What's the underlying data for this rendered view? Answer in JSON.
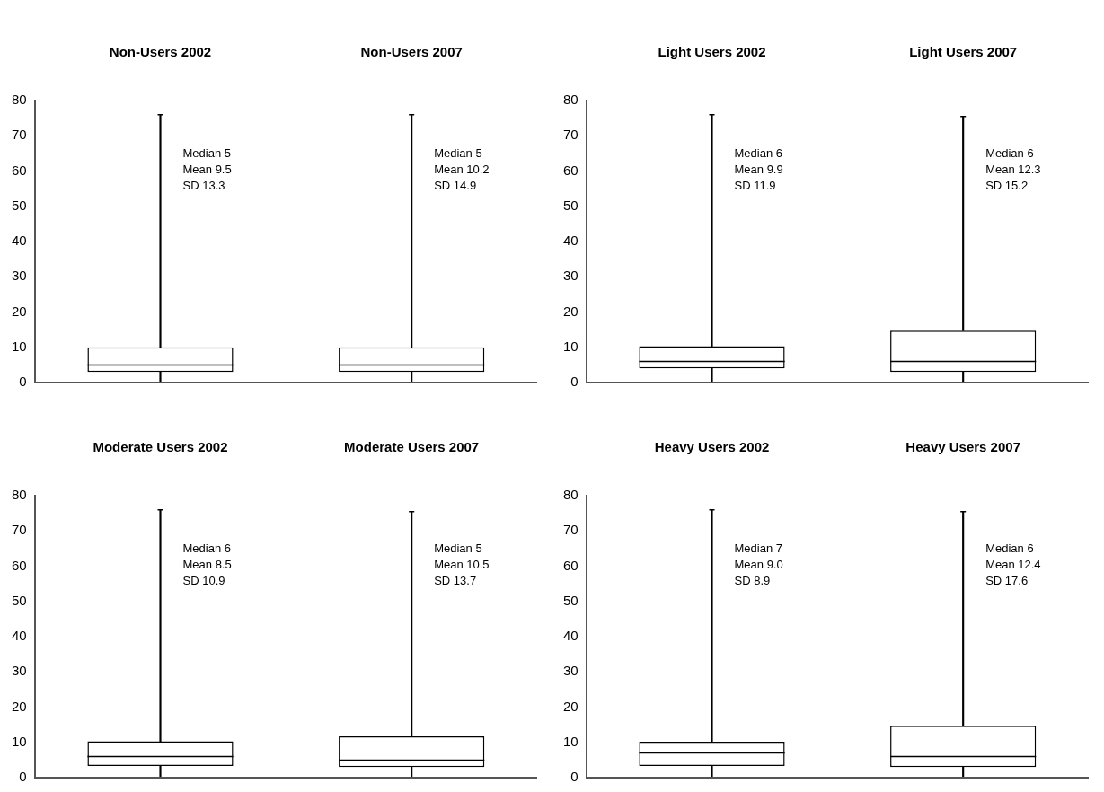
{
  "chart_data": [
    {
      "type": "box",
      "categories": [
        "Non-Users 2002",
        "Non-Users 2007"
      ],
      "series": [
        {
          "color": "#000000",
          "boxes": [
            {
              "low": 0,
              "q1": 3,
              "median": 5,
              "q3": 10,
              "high": 76
            },
            {
              "low": 0,
              "q1": 3,
              "median": 5,
              "q3": 10,
              "high": 76
            }
          ]
        }
      ],
      "ylim": [
        0,
        80
      ],
      "yticks": [
        0,
        10,
        20,
        30,
        40,
        50,
        60,
        70,
        80
      ],
      "grid": false,
      "legend": false,
      "annotations": [
        "Median 5\nMean 9.5\nSD 13.3",
        "Median 5\nMean 10.2\nSD 14.9"
      ]
    },
    {
      "type": "box",
      "categories": [
        "Light Users 2002",
        "Light Users 2007"
      ],
      "series": [
        {
          "color": "#000000",
          "boxes": [
            {
              "low": 0,
              "q1": 4,
              "median": 6,
              "q3": 10.3,
              "high": 76
            },
            {
              "low": 0,
              "q1": 3,
              "median": 6,
              "q3": 14.7,
              "high": 75.5
            }
          ]
        }
      ],
      "ylim": [
        0,
        80
      ],
      "yticks": [
        0,
        10,
        20,
        30,
        40,
        50,
        60,
        70,
        80
      ],
      "grid": false,
      "legend": false,
      "annotations": [
        "Median 6\nMean 9.9\nSD 11.9",
        "Median 6\nMean 12.3\nSD 15.2"
      ]
    },
    {
      "type": "box",
      "categories": [
        "Moderate Users 2002",
        "Moderate Users 2007"
      ],
      "series": [
        {
          "color": "#000000",
          "boxes": [
            {
              "low": 0,
              "q1": 3.3,
              "median": 6,
              "q3": 10.3,
              "high": 76
            },
            {
              "low": 0,
              "q1": 3,
              "median": 5,
              "q3": 11.7,
              "high": 75.5
            }
          ]
        }
      ],
      "ylim": [
        0,
        80
      ],
      "yticks": [
        0,
        10,
        20,
        30,
        40,
        50,
        60,
        70,
        80
      ],
      "grid": false,
      "legend": false,
      "annotations": [
        "Median 6\nMean 8.5\nSD 10.9",
        "Median 5\nMean 10.5\nSD 13.7"
      ]
    },
    {
      "type": "box",
      "categories": [
        "Heavy Users 2002",
        "Heavy Users 2007"
      ],
      "series": [
        {
          "color": "#000000",
          "boxes": [
            {
              "low": 0,
              "q1": 3.3,
              "median": 7,
              "q3": 10.2,
              "high": 76
            },
            {
              "low": 0,
              "q1": 3,
              "median": 6,
              "q3": 14.7,
              "high": 75.5
            }
          ]
        }
      ],
      "ylim": [
        0,
        80
      ],
      "yticks": [
        0,
        10,
        20,
        30,
        40,
        50,
        60,
        70,
        80
      ],
      "grid": false,
      "legend": false,
      "annotations": [
        "Median 7\nMean 9.0\nSD 8.9",
        "Median 6\nMean 12.4\nSD 17.6"
      ]
    }
  ]
}
